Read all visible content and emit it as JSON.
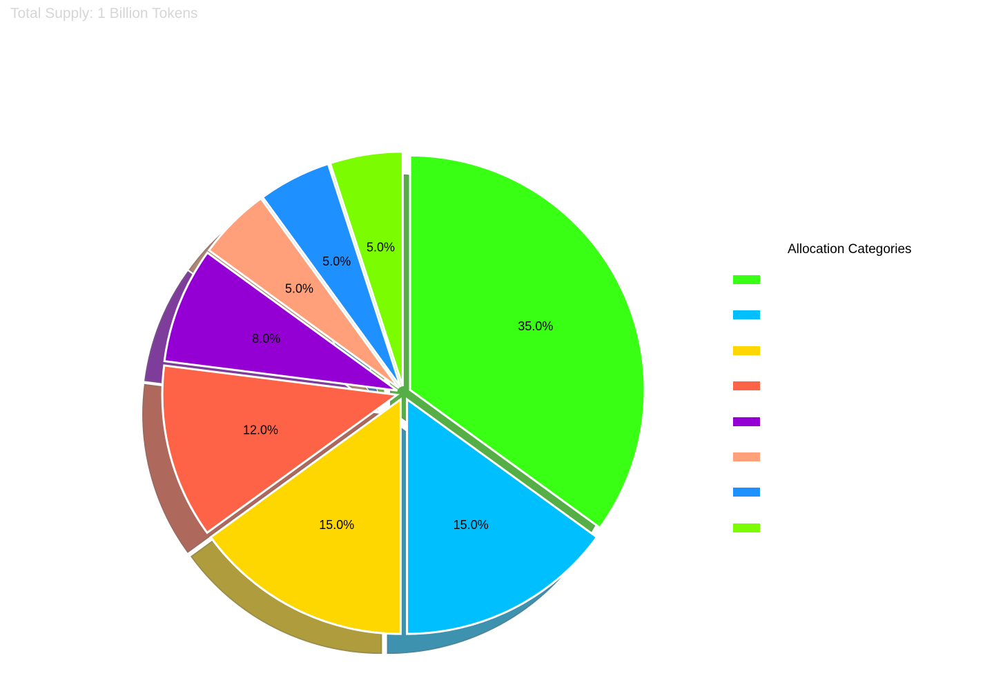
{
  "page": {
    "title": "Total Supply: 1 Billion Tokens"
  },
  "chart_data": {
    "type": "pie",
    "title": "Total Supply: 1 Billion Tokens",
    "start_angle_deg": 90,
    "direction": "clockwise",
    "shadow": true,
    "exploded": true,
    "label_format": "percent_one_decimal",
    "legend_title": "Allocation Categories",
    "legend_position": "right",
    "slices": [
      {
        "value": 35.0,
        "label": "35.0%",
        "color": "#39FF14",
        "explode": 0.03
      },
      {
        "value": 15.0,
        "label": "15.0%",
        "color": "#00BFFF",
        "explode": 0.03
      },
      {
        "value": 15.0,
        "label": "15.0%",
        "color": "#FFD700",
        "explode": 0.03
      },
      {
        "value": 12.0,
        "label": "12.0%",
        "color": "#FF6347",
        "explode": 0.03
      },
      {
        "value": 8.0,
        "label": "8.0%",
        "color": "#9400D3",
        "explode": 0.03
      },
      {
        "value": 5.0,
        "label": "5.0%",
        "color": "#FFA07A",
        "explode": 0.03
      },
      {
        "value": 5.0,
        "label": "5.0%",
        "color": "#1E90FF",
        "explode": 0.03
      },
      {
        "value": 5.0,
        "label": "5.0%",
        "color": "#7CFC00",
        "explode": 0.03
      }
    ]
  }
}
